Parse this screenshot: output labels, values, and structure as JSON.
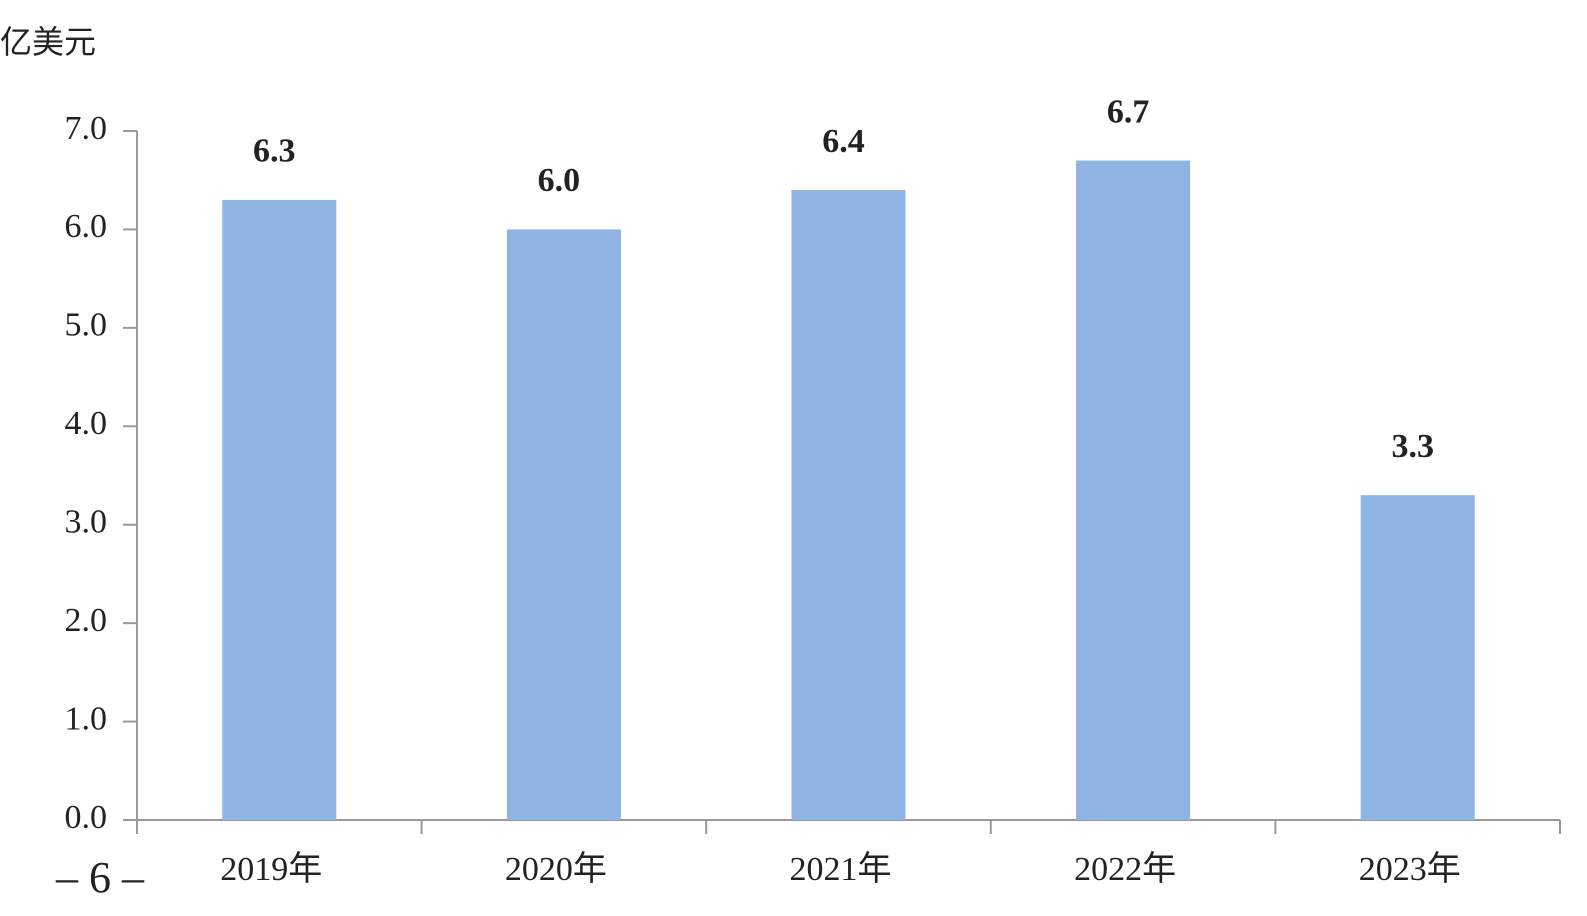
{
  "chart_data": {
    "type": "bar",
    "y_axis_label": "亿美元",
    "categories": [
      "2019年",
      "2020年",
      "2021年",
      "2022年",
      "2023年"
    ],
    "values": [
      6.3,
      6.0,
      6.4,
      6.7,
      3.3
    ],
    "value_labels": [
      "6.3",
      "6.0",
      "6.4",
      "6.7",
      "3.3"
    ],
    "color": "#8eb4e3",
    "ylim": [
      0,
      7
    ],
    "yticks": [
      {
        "value": 0,
        "label": "0.0"
      },
      {
        "value": 1,
        "label": "1.0"
      },
      {
        "value": 2,
        "label": "2.0"
      },
      {
        "value": 3,
        "label": "3.0"
      },
      {
        "value": 4,
        "label": "4.0"
      },
      {
        "value": 5,
        "label": "5.0"
      },
      {
        "value": 6,
        "label": "6.0"
      },
      {
        "value": 7,
        "label": "7.0"
      }
    ],
    "grid": false
  },
  "footer": "– 6 –"
}
